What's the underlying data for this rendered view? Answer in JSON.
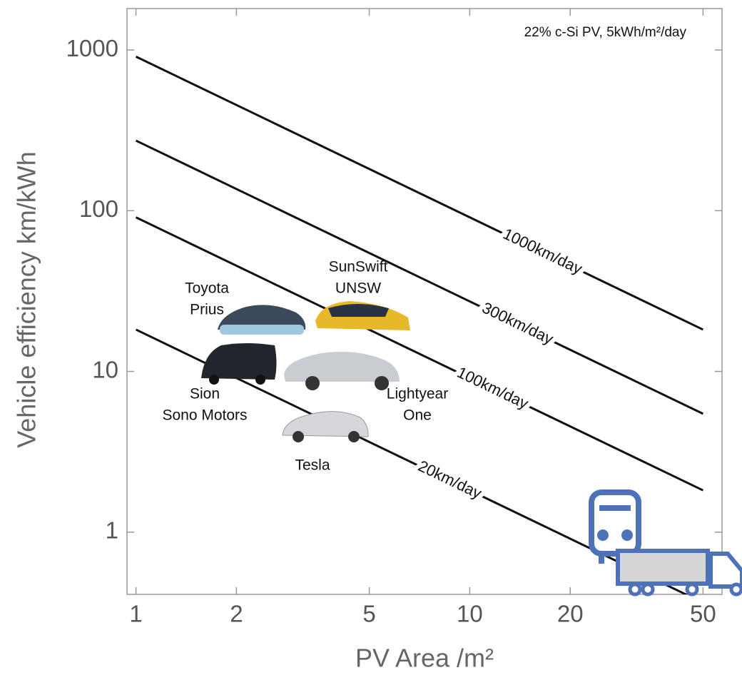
{
  "chart_data": {
    "type": "line",
    "annotation": "22% c-Si PV, 5kWh/m²/day",
    "x_label": "PV Area /m²",
    "y_label": "Vehicle efficiency km/kWh",
    "log_x": true,
    "log_y": true,
    "x": [
      1,
      50
    ],
    "series": [
      {
        "name": "1000km/day",
        "color": "#111111",
        "values": [
          909,
          18.2
        ]
      },
      {
        "name": "300km/day",
        "color": "#111111",
        "values": [
          273,
          5.45
        ]
      },
      {
        "name": "100km/day",
        "color": "#111111",
        "values": [
          90.9,
          1.82
        ]
      },
      {
        "name": "20km/day",
        "color": "#111111",
        "values": [
          18.2,
          0.364
        ]
      }
    ],
    "xlim": [
      0.94,
      57
    ],
    "ylim": [
      0.41,
      1810
    ],
    "xticks": [
      1,
      2,
      5,
      10,
      20,
      50
    ],
    "yticks": [
      1,
      10,
      100,
      1000
    ],
    "vehicles": [
      {
        "lines": [
          "Toyota",
          "Prius"
        ]
      },
      {
        "lines": [
          "SunSwift",
          "UNSW"
        ]
      },
      {
        "lines": [
          "Sion",
          "Sono Motors"
        ]
      },
      {
        "lines": [
          "Lightyear",
          "One"
        ]
      },
      {
        "lines": [
          "Tesla"
        ]
      }
    ]
  }
}
